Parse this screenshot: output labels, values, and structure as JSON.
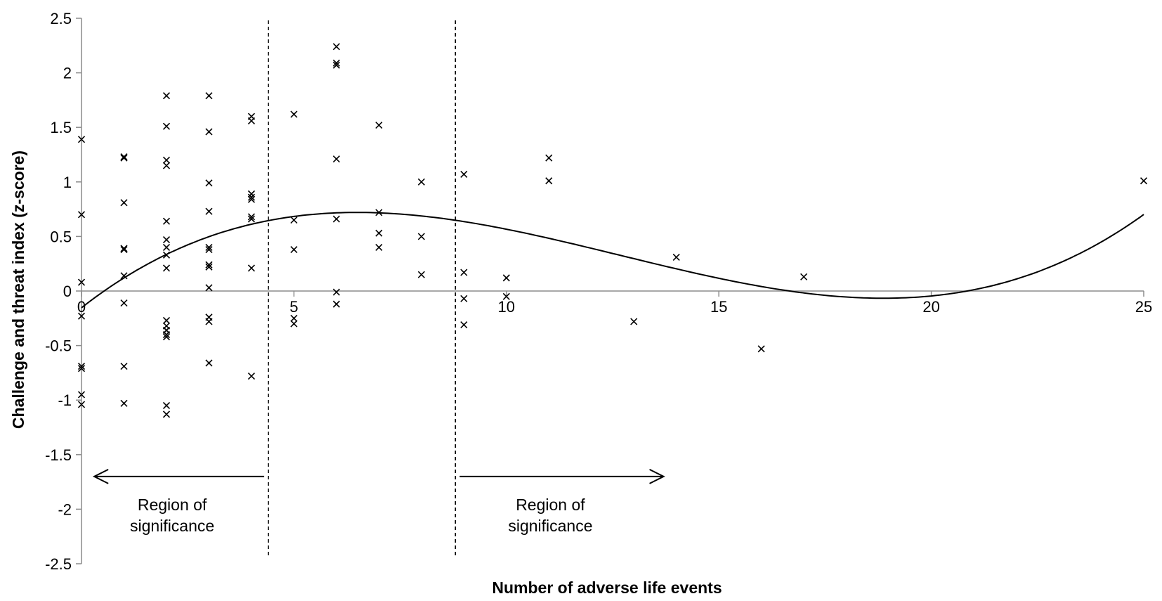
{
  "chart_data": {
    "type": "scatter",
    "title": "",
    "xlabel": "Number of adverse life events",
    "ylabel": "Challenge and threat index (z-score)",
    "xlim": [
      0,
      25
    ],
    "ylim": [
      -2.5,
      2.5
    ],
    "x_ticks": [
      "0",
      "5",
      "10",
      "15",
      "20",
      "25"
    ],
    "y_ticks": [
      "2.5",
      "2",
      "1.5",
      "1",
      "0.5",
      "0",
      "-0.5",
      "-1",
      "-1.5",
      "-2",
      "-2.5"
    ],
    "grid": false,
    "legend": "none",
    "marker": "x",
    "points": [
      [
        0,
        1.39
      ],
      [
        0,
        0.7
      ],
      [
        0,
        0.08
      ],
      [
        0,
        -0.23
      ],
      [
        0,
        -0.69
      ],
      [
        0,
        -0.71
      ],
      [
        0,
        -0.95
      ],
      [
        0,
        -1.04
      ],
      [
        1,
        1.23
      ],
      [
        1,
        1.22
      ],
      [
        1,
        0.81
      ],
      [
        1,
        0.39
      ],
      [
        1,
        0.38
      ],
      [
        1,
        0.14
      ],
      [
        1,
        -0.11
      ],
      [
        1,
        -0.69
      ],
      [
        1,
        -1.03
      ],
      [
        2,
        1.79
      ],
      [
        2,
        1.51
      ],
      [
        2,
        1.2
      ],
      [
        2,
        1.15
      ],
      [
        2,
        0.64
      ],
      [
        2,
        0.47
      ],
      [
        2,
        0.4
      ],
      [
        2,
        0.33
      ],
      [
        2,
        0.21
      ],
      [
        2,
        -0.27
      ],
      [
        2,
        -0.32
      ],
      [
        2,
        -0.36
      ],
      [
        2,
        -0.4
      ],
      [
        2,
        -0.42
      ],
      [
        2,
        -1.05
      ],
      [
        2,
        -1.13
      ],
      [
        3,
        1.79
      ],
      [
        3,
        1.46
      ],
      [
        3,
        0.99
      ],
      [
        3,
        0.73
      ],
      [
        3,
        0.4
      ],
      [
        3,
        0.38
      ],
      [
        3,
        0.24
      ],
      [
        3,
        0.22
      ],
      [
        3,
        0.03
      ],
      [
        3,
        -0.24
      ],
      [
        3,
        -0.28
      ],
      [
        3,
        -0.66
      ],
      [
        4,
        1.6
      ],
      [
        4,
        1.56
      ],
      [
        4,
        0.89
      ],
      [
        4,
        0.86
      ],
      [
        4,
        0.84
      ],
      [
        4,
        0.68
      ],
      [
        4,
        0.66
      ],
      [
        4,
        0.21
      ],
      [
        4,
        -0.78
      ],
      [
        5,
        1.62
      ],
      [
        5,
        0.65
      ],
      [
        5,
        0.38
      ],
      [
        5,
        -0.25
      ],
      [
        5,
        -0.3
      ],
      [
        6,
        2.24
      ],
      [
        6,
        2.09
      ],
      [
        6,
        2.07
      ],
      [
        6,
        1.21
      ],
      [
        6,
        0.66
      ],
      [
        6,
        -0.01
      ],
      [
        6,
        -0.12
      ],
      [
        7,
        1.52
      ],
      [
        7,
        0.72
      ],
      [
        7,
        0.53
      ],
      [
        7,
        0.4
      ],
      [
        8,
        1.0
      ],
      [
        8,
        0.5
      ],
      [
        8,
        0.15
      ],
      [
        9,
        1.07
      ],
      [
        9,
        0.17
      ],
      [
        9,
        -0.07
      ],
      [
        9,
        -0.31
      ],
      [
        10,
        0.12
      ],
      [
        10,
        -0.05
      ],
      [
        11,
        1.22
      ],
      [
        11,
        1.01
      ],
      [
        13,
        -0.28
      ],
      [
        14,
        0.31
      ],
      [
        16,
        -0.53
      ],
      [
        17,
        0.13
      ],
      [
        25,
        1.01
      ]
    ],
    "trend": {
      "type": "polynomial-cubic",
      "coefficients": [
        -0.1535,
        0.3042,
        -0.0315,
        0.000828
      ]
    },
    "region_boundaries": [
      4.4,
      8.8
    ],
    "annotations": [
      {
        "line1": "Region of",
        "line2": "significance",
        "direction": "left",
        "x_range": [
          0.3,
          4.3
        ],
        "y": -1.7
      },
      {
        "line1": "Region of",
        "line2": "significance",
        "direction": "right",
        "x_range": [
          8.9,
          13.7
        ],
        "y": -1.7
      }
    ]
  }
}
